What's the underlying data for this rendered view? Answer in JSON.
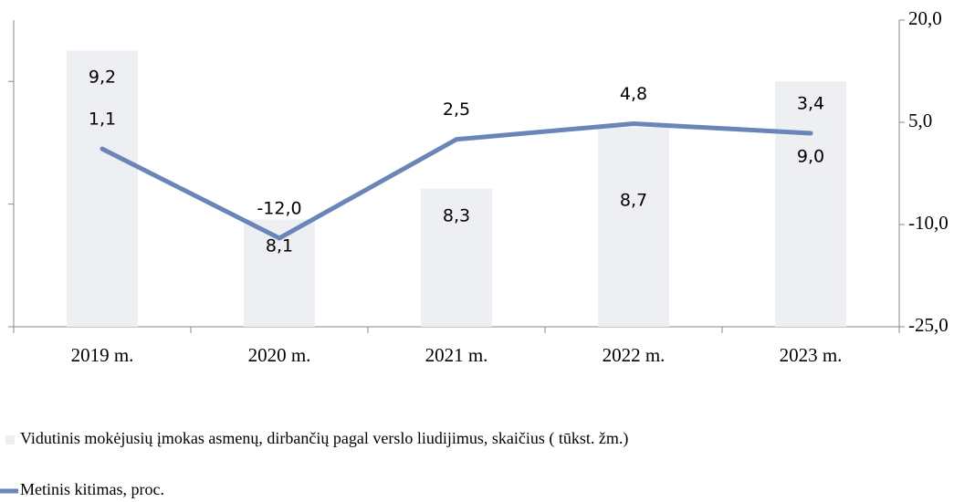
{
  "chart_data": {
    "type": "bar_line",
    "categories": [
      "2019 m.",
      "2020 m.",
      "2021 m.",
      "2022 m.",
      "2023 m."
    ],
    "series": [
      {
        "name": "Vidutinis  mokėjusių įmokas  asmenų, dirbančių pagal verslo liudijimus, skaičius ( tūkst. žm.)",
        "type": "bar",
        "color": "#eeeff2",
        "values": [
          9.2,
          8.1,
          8.3,
          8.7,
          9.0
        ],
        "value_labels": [
          "9,2",
          "8,1",
          "8,3",
          "8,7",
          "9,0"
        ]
      },
      {
        "name": "Metinis kitimas, proc.",
        "type": "line",
        "axis": "y2",
        "color": "#6a85b8",
        "values": [
          1.1,
          -12.0,
          2.5,
          4.8,
          3.4
        ],
        "value_labels": [
          "1,1",
          "-12,0",
          "2,5",
          "4,8",
          "3,4"
        ]
      }
    ],
    "ylim": [
      7.4,
      9.4
    ],
    "yticks": [
      7.4,
      8.2,
      9.0
    ],
    "y2lim": [
      -25,
      20
    ],
    "y2ticks": [
      {
        "value": -25,
        "label": "-25,0"
      },
      {
        "value": -10,
        "label": "-10,0"
      },
      {
        "value": 5,
        "label": "5,0"
      },
      {
        "value": 20,
        "label": "20,0"
      }
    ]
  }
}
